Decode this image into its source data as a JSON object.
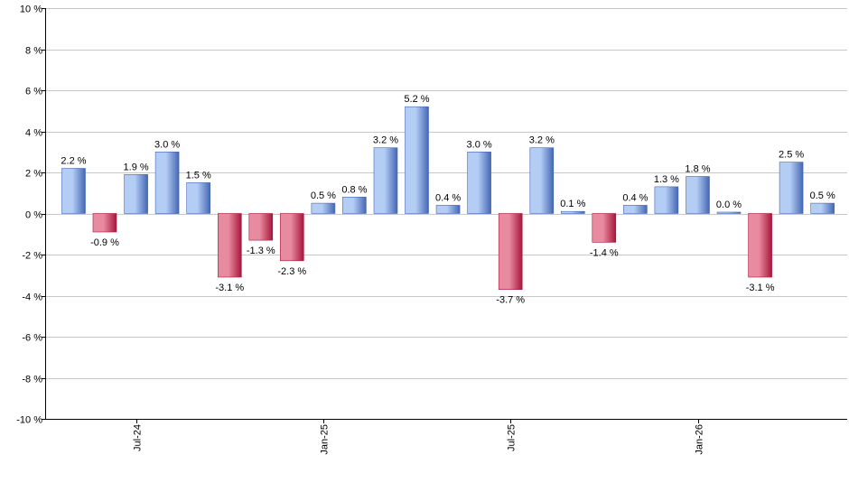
{
  "chart_data": {
    "type": "bar",
    "ylim": [
      -10,
      10
    ],
    "y_ticks": [
      10,
      8,
      6,
      4,
      2,
      0,
      -2,
      -4,
      -6,
      -8,
      -10
    ],
    "y_tick_labels": [
      "10 %",
      "8 %",
      "6 %",
      "4 %",
      "2 %",
      "0 %",
      "-2 %",
      "-4 %",
      "-6 %",
      "-8 %",
      "-10 %"
    ],
    "x_tick_labels": [
      {
        "label": "Jul-24",
        "index": 2
      },
      {
        "label": "Jan-25",
        "index": 8
      },
      {
        "label": "Jul-25",
        "index": 14
      },
      {
        "label": "Jan-26",
        "index": 20
      }
    ],
    "values": [
      2.2,
      -0.9,
      1.9,
      3.0,
      1.5,
      -3.1,
      -1.3,
      -2.3,
      0.5,
      0.8,
      3.2,
      5.2,
      0.4,
      3.0,
      -3.7,
      3.2,
      0.1,
      -1.4,
      0.4,
      1.3,
      1.8,
      0.0,
      -3.1,
      2.5,
      0.5
    ],
    "data_labels": [
      "2.2 %",
      "-0.9 %",
      "1.9 %",
      "3.0 %",
      "1.5 %",
      "-3.1 %",
      "-1.3 %",
      "-2.3 %",
      "0.5 %",
      "0.8 %",
      "3.2 %",
      "5.2 %",
      "0.4 %",
      "3.0 %",
      "-3.7 %",
      "3.2 %",
      "0.1 %",
      "-1.4 %",
      "0.4 %",
      "1.3 %",
      "1.8 %",
      "0.0 %",
      "-3.1 %",
      "2.5 %",
      "0.5 %"
    ],
    "grid": true,
    "colors": {
      "positive_light": "#b4cdf5",
      "positive_dark": "#4467b4",
      "negative_light": "#e88aa0",
      "negative_dark": "#a8163a",
      "gridline": "#c8c8c8",
      "axis": "#000000"
    }
  }
}
